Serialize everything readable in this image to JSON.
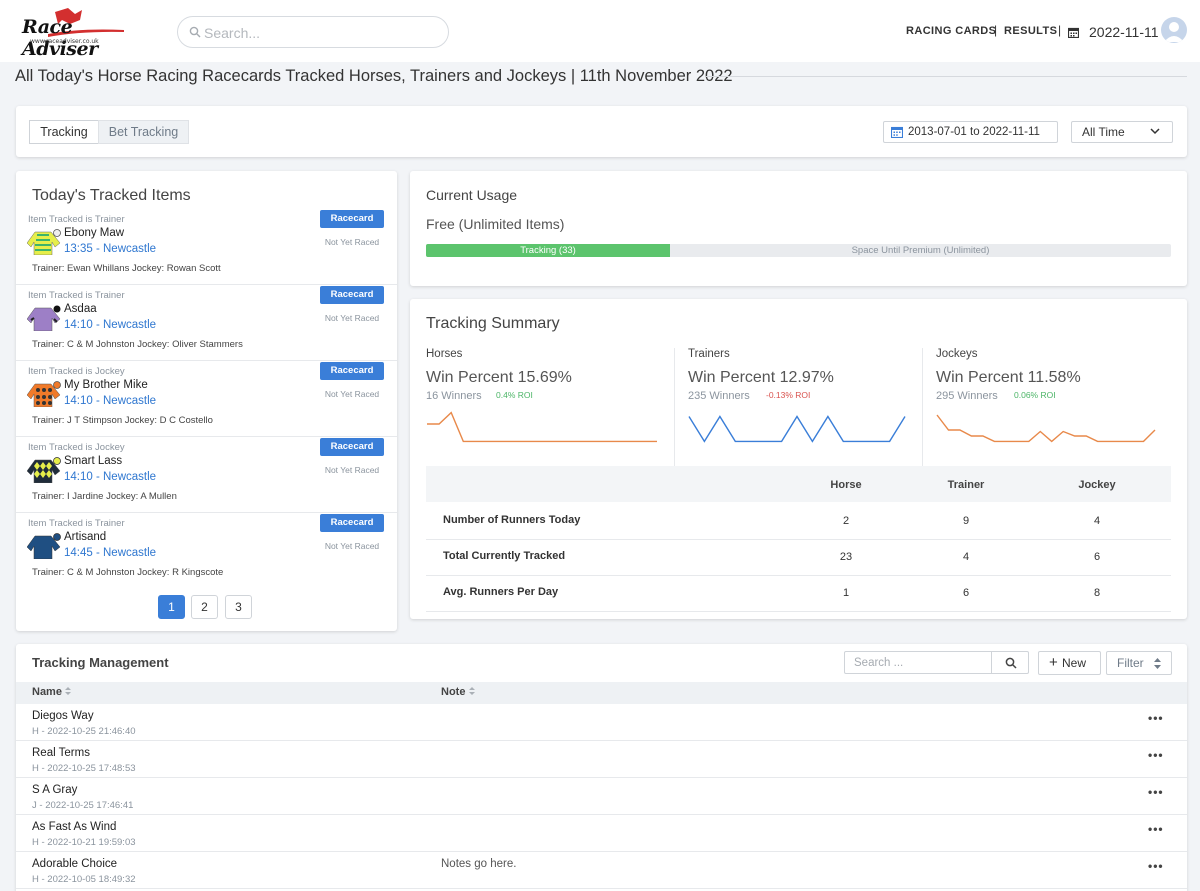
{
  "header": {
    "search_placeholder": "Search...",
    "nav_racing_cards": "RACING CARDS",
    "nav_results": "RESULTS",
    "date": "2022-11-11",
    "logo_sub": "www.raceadviser.co.uk"
  },
  "page_title": "All Today's Horse Racing Racecards Tracked Horses, Trainers and Jockeys | 11th November 2022",
  "filter": {
    "tabs": [
      "Tracking",
      "Bet Tracking"
    ],
    "date_range": "2013-07-01 to 2022-11-11",
    "period": "All Time"
  },
  "tracked": {
    "title": "Today's Tracked Items",
    "button_label": "Racecard",
    "items": [
      {
        "kind": "Item Tracked is Trainer",
        "name": "Ebony Maw",
        "race": "13:35 - Newcastle",
        "people": "Trainer: Ewan Whillans Jockey: Rowan Scott",
        "status": "Not Yet Raced"
      },
      {
        "kind": "Item Tracked is Trainer",
        "name": "Asdaa",
        "race": "14:10 - Newcastle",
        "people": "Trainer: C & M Johnston Jockey: Oliver Stammers",
        "status": "Not Yet Raced"
      },
      {
        "kind": "Item Tracked is Jockey",
        "name": "My Brother Mike",
        "race": "14:10 - Newcastle",
        "people": "Trainer: J T Stimpson Jockey: D C Costello",
        "status": "Not Yet Raced"
      },
      {
        "kind": "Item Tracked is Jockey",
        "name": "Smart Lass",
        "race": "14:10 - Newcastle",
        "people": "Trainer: I Jardine Jockey: A Mullen",
        "status": "Not Yet Raced"
      },
      {
        "kind": "Item Tracked is Trainer",
        "name": "Artisand",
        "race": "14:45 - Newcastle",
        "people": "Trainer: C & M Johnston Jockey: R Kingscote",
        "status": "Not Yet Raced"
      }
    ],
    "pages": [
      "1",
      "2",
      "3"
    ]
  },
  "usage": {
    "title": "Current Usage",
    "plan": "Free (Unlimited Items)",
    "used_label": "Tracking (33)",
    "remaining_label": "Space Until Premium (Unlimited)",
    "used_fraction": 0.328
  },
  "summary": {
    "title": "Tracking Summary",
    "columns": [
      {
        "heading": "Horses",
        "win": "Win Percent 15.69%",
        "winners": "16 Winners",
        "roi": "0.4% ROI",
        "roi_sign": "pos",
        "color": "#e8894a",
        "spark": [
          0.6,
          0.6,
          0.98,
          0.02,
          0.02,
          0.02,
          0.02,
          0.02,
          0.02,
          0.02,
          0.02,
          0.02,
          0.02,
          0.02,
          0.02,
          0.02,
          0.02,
          0.02,
          0.02,
          0.02
        ]
      },
      {
        "heading": "Trainers",
        "win": "Win Percent 12.97%",
        "winners": "235 Winners",
        "roi": "-0.13% ROI",
        "roi_sign": "neg",
        "color": "#3a7ed8",
        "spark": [
          0.85,
          0.02,
          0.85,
          0.02,
          0.02,
          0.02,
          0.02,
          0.85,
          0.02,
          0.85,
          0.02,
          0.02,
          0.02,
          0.02,
          0.85
        ]
      },
      {
        "heading": "Jockeys",
        "win": "Win Percent 11.58%",
        "winners": "295 Winners",
        "roi": "0.06% ROI",
        "roi_sign": "pos",
        "color": "#e8894a",
        "spark": [
          0.9,
          0.4,
          0.4,
          0.2,
          0.2,
          0.02,
          0.02,
          0.02,
          0.02,
          0.35,
          0.02,
          0.35,
          0.2,
          0.2,
          0.02,
          0.02,
          0.02,
          0.02,
          0.02,
          0.4
        ]
      }
    ],
    "table": {
      "headers": [
        "Horse",
        "Trainer",
        "Jockey"
      ],
      "rows": [
        {
          "label": "Number of Runners Today",
          "values": [
            "2",
            "9",
            "4"
          ]
        },
        {
          "label": "Total Currently Tracked",
          "values": [
            "23",
            "4",
            "6"
          ]
        },
        {
          "label": "Avg. Runners Per Day",
          "values": [
            "1",
            "6",
            "8"
          ]
        }
      ]
    }
  },
  "management": {
    "title": "Tracking Management",
    "search_placeholder": "Search ...",
    "new_label": "New",
    "filter_label": "Filter",
    "col_name": "Name",
    "col_note": "Note",
    "rows": [
      {
        "name": "Diegos Way",
        "meta": "H - 2022-10-25 21:46:40",
        "note": ""
      },
      {
        "name": "Real Terms",
        "meta": "H - 2022-10-25 17:48:53",
        "note": ""
      },
      {
        "name": "S A Gray",
        "meta": "J - 2022-10-25 17:46:41",
        "note": ""
      },
      {
        "name": "As Fast As Wind",
        "meta": "H - 2022-10-21 19:59:03",
        "note": ""
      },
      {
        "name": "Adorable Choice",
        "meta": "H - 2022-10-05 18:49:32",
        "note": "Notes go here."
      }
    ]
  }
}
